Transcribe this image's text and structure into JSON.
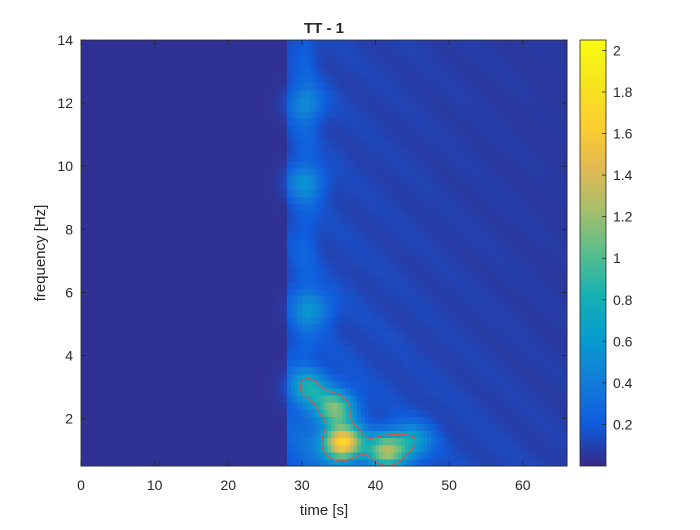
{
  "chart_data": {
    "type": "heatmap",
    "title": "TT - 1",
    "xlabel": "time [s]",
    "ylabel": "frequency [Hz]",
    "xlim": [
      0,
      66
    ],
    "ylim": [
      0.5,
      14
    ],
    "x_ticks": [
      0,
      10,
      20,
      30,
      40,
      50,
      60
    ],
    "y_ticks": [
      2,
      4,
      6,
      8,
      10,
      12,
      14
    ],
    "colorbar": {
      "colormap": "parula",
      "range": [
        0,
        2.05
      ],
      "ticks": [
        0.2,
        0.4,
        0.6,
        0.8,
        1,
        1.2,
        1.4,
        1.6,
        1.8,
        2
      ]
    },
    "background_value": 0.03,
    "signal_onset_time": 28,
    "hotspots": [
      {
        "t": 35.5,
        "f": 1.25,
        "peak": 1.55
      },
      {
        "t": 41.5,
        "f": 1.0,
        "peak": 1.05
      },
      {
        "t": 34.5,
        "f": 2.35,
        "peak": 0.92
      },
      {
        "t": 31.0,
        "f": 3.0,
        "peak": 0.55
      },
      {
        "t": 45.0,
        "f": 1.3,
        "peak": 0.5
      },
      {
        "t": 31.5,
        "f": 5.5,
        "peak": 0.35
      },
      {
        "t": 30.5,
        "f": 9.5,
        "peak": 0.32
      },
      {
        "t": 30.5,
        "f": 12.0,
        "peak": 0.3
      }
    ],
    "contour": {
      "level": 0.7,
      "color": "#d9534f"
    }
  }
}
